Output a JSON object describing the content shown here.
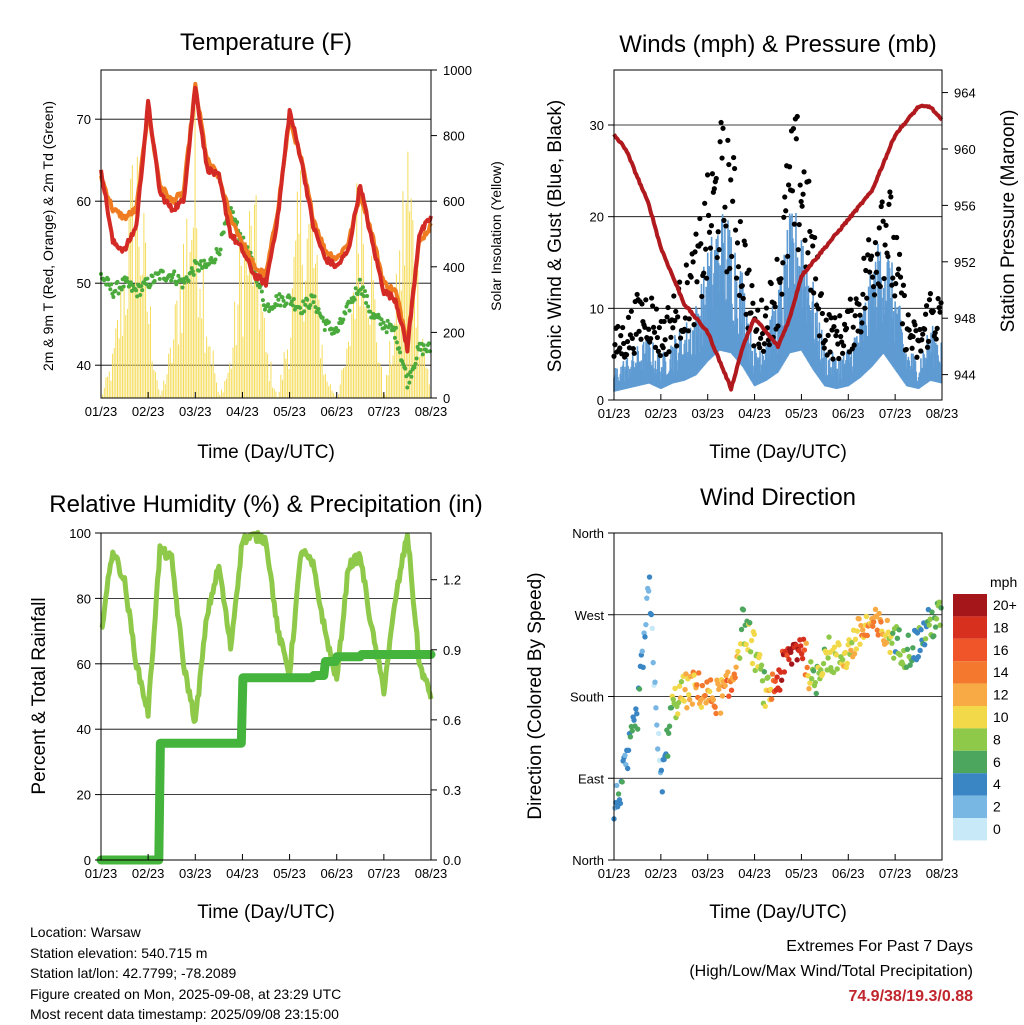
{
  "x_tick_labels": [
    "01/23",
    "02/23",
    "03/23",
    "04/23",
    "05/23",
    "06/23",
    "07/23",
    "08/23"
  ],
  "footer": {
    "location": "Location: Warsaw",
    "elevation": "Station elevation: 540.715 m",
    "latlon": "Station lat/lon: 42.7799; -78.2089",
    "created": "Figure created on Mon, 2025-09-08, at 23:29 UTC",
    "recent": "Most recent data timestamp: 2025/09/08 23:15:00"
  },
  "extremes": {
    "title": "Extremes For Past 7 Days",
    "subtitle": "(High/Low/Max Wind/Total Precipitation)",
    "values": "74.9/38/19.3/0.88"
  },
  "chart_data": [
    {
      "type": "line",
      "title": "Temperature (F)",
      "xlabel": "Time (Day/UTC)",
      "ylabel": "2m & 9m T (Red, Orange) & 2m Td (Green)",
      "y2label": "Solar Insolation (Yellow)",
      "ylim": [
        36,
        76
      ],
      "y2lim": [
        0,
        1000
      ],
      "yticks": [
        "40",
        "50",
        "60",
        "70"
      ],
      "y2ticks": [
        "0",
        "200",
        "400",
        "600",
        "800",
        "1000"
      ],
      "colors": {
        "t2m": "#d42a25",
        "t9m": "#f07c22",
        "td": "#4aaa3c",
        "solar": "#f5dc5a"
      },
      "x": [
        0,
        0.25,
        0.5,
        0.75,
        1,
        1.25,
        1.5,
        1.75,
        2,
        2.25,
        2.5,
        2.75,
        3,
        3.25,
        3.5,
        3.75,
        4,
        4.25,
        4.5,
        4.75,
        5,
        5.25,
        5.5,
        5.75,
        6,
        6.25,
        6.5,
        6.75,
        7
      ],
      "series": [
        {
          "key": "t2m",
          "values": [
            64,
            55,
            54,
            57,
            72,
            61,
            59,
            60,
            74,
            64,
            63,
            56,
            54,
            51,
            50,
            58,
            71,
            65,
            57,
            53,
            52,
            54,
            62,
            55,
            49,
            48,
            42,
            56,
            58
          ]
        },
        {
          "key": "t9m",
          "values": [
            63,
            59,
            58,
            59,
            71,
            62,
            60,
            61,
            74,
            65,
            63,
            58,
            55,
            52,
            51,
            59,
            70,
            65,
            58,
            54,
            53,
            55,
            61,
            56,
            50,
            49,
            43,
            55,
            57
          ]
        },
        {
          "key": "td",
          "values": [
            51,
            49,
            50,
            49,
            50,
            51,
            51,
            50,
            52,
            52,
            54,
            59,
            55,
            52,
            47,
            48,
            48,
            47,
            48,
            45,
            44,
            47,
            50,
            46,
            45,
            44,
            38,
            42,
            42
          ]
        },
        {
          "key": "solar",
          "values": [
            0,
            150,
            500,
            950,
            400,
            0,
            200,
            600,
            930,
            350,
            0,
            150,
            600,
            700,
            200,
            0,
            300,
            800,
            650,
            100,
            0,
            200,
            930,
            500,
            0,
            350,
            950,
            400,
            0
          ]
        }
      ]
    },
    {
      "type": "scatter",
      "title": "Winds (mph) & Pressure (mb)",
      "xlabel": "Time (Day/UTC)",
      "ylabel": "Sonic Wind & Gust (Blue, Black)",
      "y2label": "Station Pressure (Maroon)",
      "ylim": [
        0,
        36
      ],
      "y2lim": [
        942.2,
        965.6
      ],
      "yticks": [
        "0",
        "10",
        "20",
        "30"
      ],
      "y2ticks": [
        "944",
        "948",
        "952",
        "956",
        "960",
        "964"
      ],
      "colors": {
        "wind": "#5f9bd3",
        "gust": "#000000",
        "pressure": "#b0191d"
      },
      "x": [
        0,
        0.25,
        0.5,
        0.75,
        1,
        1.25,
        1.5,
        1.75,
        2,
        2.25,
        2.5,
        2.75,
        3,
        3.25,
        3.5,
        3.75,
        4,
        4.25,
        4.5,
        4.75,
        5,
        5.25,
        5.5,
        5.75,
        6,
        6.25,
        6.5,
        6.75,
        7
      ],
      "series": [
        {
          "key": "wind",
          "values": [
            3,
            4,
            5,
            6,
            4,
            6,
            7,
            9,
            14,
            18,
            17,
            12,
            5,
            7,
            10,
            17,
            18,
            11,
            5,
            4,
            5,
            8,
            12,
            17,
            11,
            5,
            4,
            7,
            6
          ]
        },
        {
          "key": "gust",
          "values": [
            6,
            7,
            9,
            10,
            7,
            9,
            11,
            14,
            19,
            24,
            22,
            16,
            8,
            9,
            13,
            23,
            25,
            15,
            8,
            7,
            8,
            11,
            16,
            22,
            15,
            8,
            6,
            10,
            9
          ]
        },
        {
          "key": "pressure",
          "values": [
            961,
            960,
            958,
            956,
            953,
            951,
            949,
            948,
            947,
            945,
            943,
            946,
            948,
            947,
            946,
            948,
            951,
            952,
            953,
            954,
            955,
            956,
            957,
            959,
            961,
            962,
            963,
            963,
            962
          ]
        }
      ]
    },
    {
      "type": "line",
      "title": "Relative Humidity (%) & Precipitation (in)",
      "xlabel": "Time (Day/UTC)",
      "ylabel": "Percent & Total Rainfall",
      "ylim": [
        0,
        100
      ],
      "y2lim": [
        0,
        1.4
      ],
      "yticks": [
        "0",
        "20",
        "40",
        "60",
        "80",
        "100"
      ],
      "y2ticks": [
        "0.0",
        "0.3",
        "0.6",
        "0.9",
        "1.2"
      ],
      "colors": {
        "rh": "#8fc94a",
        "precip": "#45b43c"
      },
      "x": [
        0,
        0.25,
        0.5,
        0.75,
        1,
        1.25,
        1.5,
        1.75,
        2,
        2.25,
        2.5,
        2.75,
        3,
        3.25,
        3.5,
        3.75,
        4,
        4.25,
        4.5,
        4.75,
        5,
        5.25,
        5.5,
        5.75,
        6,
        6.25,
        6.5,
        6.75,
        7
      ],
      "series": [
        {
          "key": "rh",
          "values": [
            70,
            95,
            85,
            60,
            45,
            95,
            92,
            60,
            42,
            75,
            90,
            65,
            98,
            99,
            98,
            70,
            57,
            95,
            90,
            70,
            55,
            90,
            93,
            70,
            52,
            80,
            100,
            60,
            50
          ]
        },
        {
          "key": "precip",
          "values": [
            0,
            0,
            0,
            0,
            0,
            0.5,
            0.5,
            0.5,
            0.5,
            0.5,
            0.5,
            0.5,
            0.78,
            0.78,
            0.78,
            0.78,
            0.78,
            0.78,
            0.79,
            0.85,
            0.87,
            0.87,
            0.88,
            0.88,
            0.88,
            0.88,
            0.88,
            0.88,
            0.88
          ]
        }
      ]
    },
    {
      "type": "scatter",
      "title": "Wind Direction",
      "xlabel": "Time (Day/UTC)",
      "ylabel": "Direction (Colored By Speed)",
      "ylim": [
        0,
        360
      ],
      "yticks": [
        "North",
        "East",
        "South",
        "West",
        "North"
      ],
      "legend_title": "mph",
      "legend_labels": [
        "20+",
        "18",
        "16",
        "14",
        "12",
        "10",
        "8",
        "6",
        "4",
        "2",
        "0"
      ],
      "legend_colors": [
        "#a5161b",
        "#d7301f",
        "#f0552a",
        "#f4782d",
        "#f8ab45",
        "#f2d94a",
        "#8fc94a",
        "#4da65e",
        "#3a86c4",
        "#78b6e4",
        "#c8e9f8"
      ],
      "x": [
        0,
        0.25,
        0.5,
        0.75,
        1,
        1.25,
        1.5,
        1.75,
        2,
        2.25,
        2.5,
        2.75,
        3,
        3.25,
        3.5,
        3.75,
        4,
        4.25,
        4.5,
        4.75,
        5,
        5.25,
        5.5,
        5.75,
        6,
        6.25,
        6.5,
        6.75,
        7
      ],
      "direction": [
        55,
        100,
        160,
        300,
        80,
        170,
        185,
        190,
        180,
        180,
        190,
        260,
        230,
        180,
        200,
        225,
        240,
        190,
        230,
        220,
        230,
        250,
        260,
        250,
        240,
        230,
        240,
        260,
        270
      ],
      "speed": [
        3,
        4,
        5,
        3,
        2,
        8,
        10,
        12,
        13,
        12,
        15,
        7,
        9,
        8,
        17,
        19,
        18,
        8,
        9,
        8,
        10,
        12,
        12,
        13,
        6,
        7,
        5,
        6,
        8
      ]
    }
  ]
}
